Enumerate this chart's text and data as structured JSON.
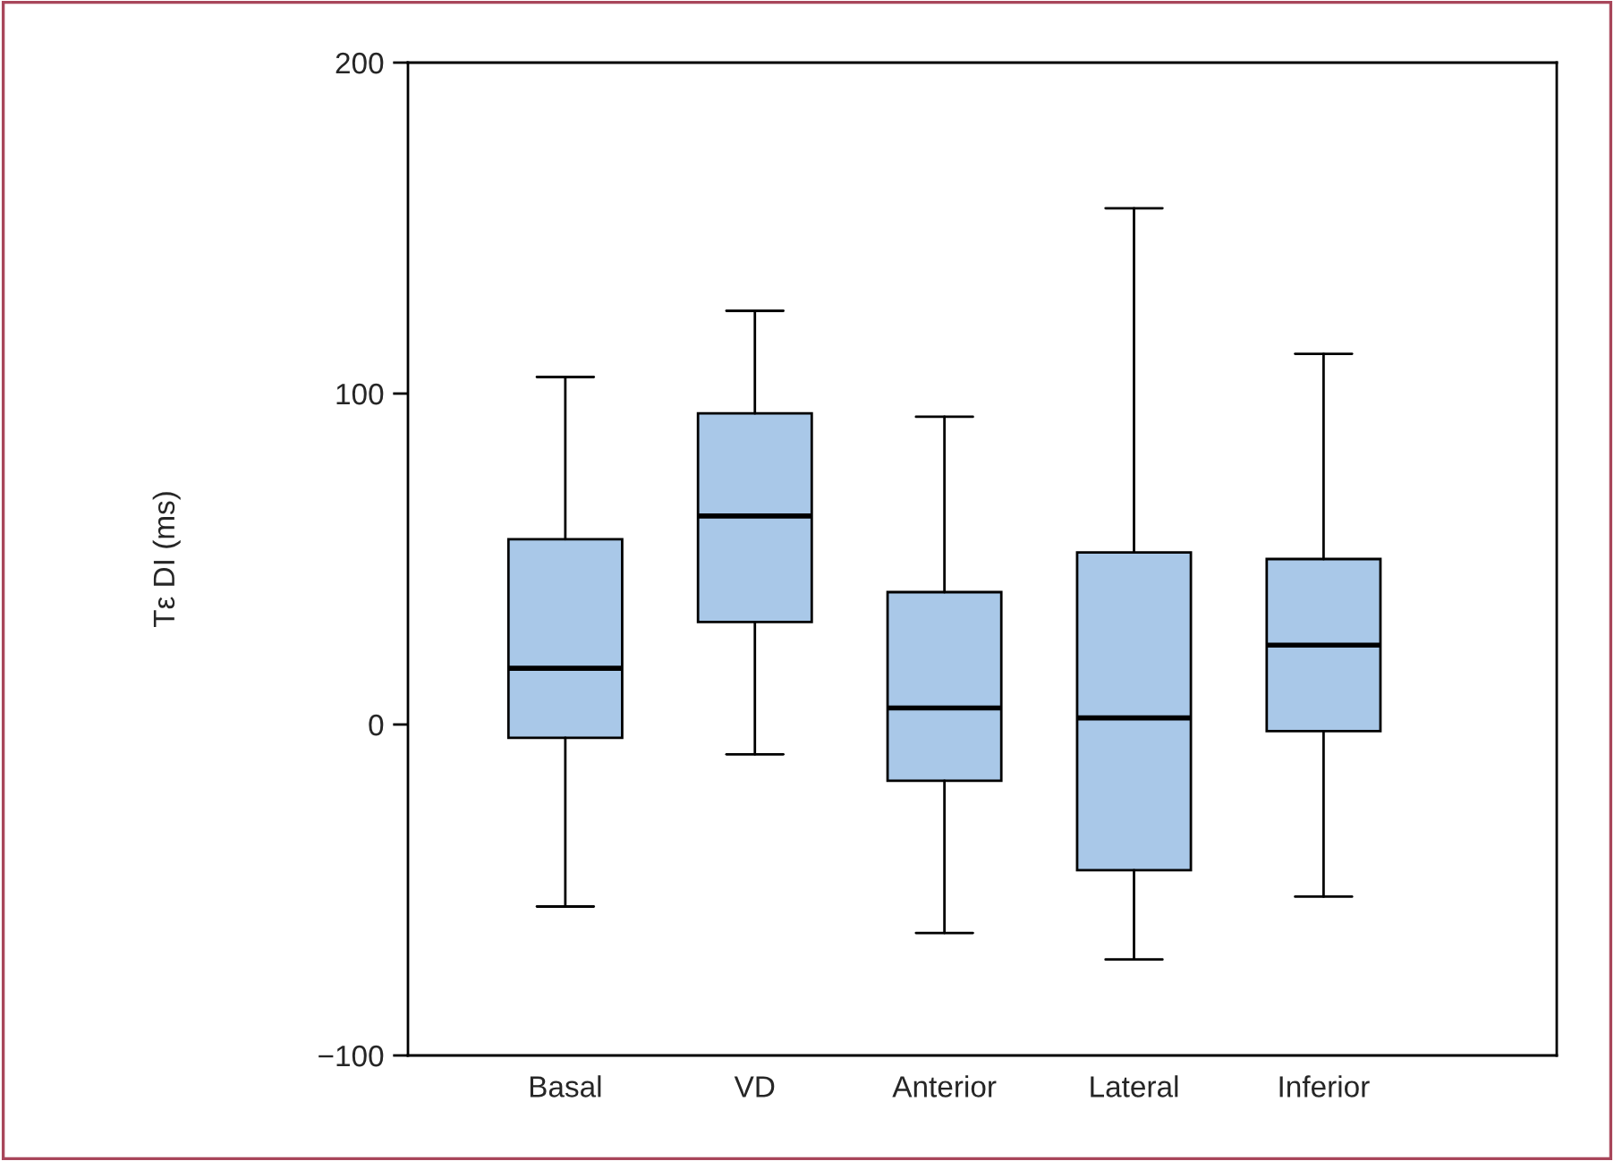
{
  "chart_data": {
    "type": "box",
    "ylabel": "Tε DI (ms)",
    "categories": [
      "Basal",
      "VD",
      "Anterior",
      "Lateral",
      "Inferior"
    ],
    "boxes": [
      {
        "low": -55,
        "q1": -4,
        "median": 17,
        "q3": 56,
        "high": 105
      },
      {
        "low": -9,
        "q1": 31,
        "median": 63,
        "q3": 94,
        "high": 125
      },
      {
        "low": -63,
        "q1": -17,
        "median": 5,
        "q3": 40,
        "high": 93
      },
      {
        "low": -71,
        "q1": -44,
        "median": 2,
        "q3": 52,
        "high": 156
      },
      {
        "low": -52,
        "q1": -2,
        "median": 24,
        "q3": 50,
        "high": 112
      }
    ],
    "color": "#a9c8e8",
    "ylim": [
      -100,
      200
    ],
    "yticks": [
      {
        "value": -100,
        "label": "−100"
      },
      0,
      100,
      200
    ],
    "grid": false
  }
}
